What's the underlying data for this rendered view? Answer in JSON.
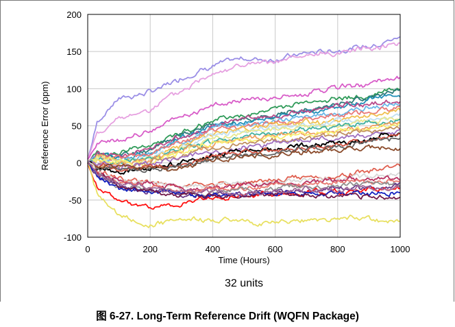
{
  "chart_data": {
    "type": "line",
    "xlabel": "Time (Hours)",
    "ylabel": "Reference Error (ppm)",
    "annotation": "32 units",
    "xlim": [
      0,
      1000
    ],
    "ylim": [
      -100,
      200
    ],
    "xticks": [
      0,
      200,
      400,
      600,
      800,
      1000
    ],
    "yticks": [
      -100,
      -50,
      0,
      50,
      100,
      150,
      200
    ],
    "grid": true,
    "x": [
      0,
      30,
      100,
      200,
      300,
      400,
      500,
      600,
      700,
      800,
      900,
      1000
    ],
    "series": [
      {
        "color": "#9a8ee6",
        "values": [
          5,
          55,
          88,
          95,
          115,
          132,
          140,
          140,
          148,
          152,
          158,
          170
        ]
      },
      {
        "color": "#e6a0e0",
        "values": [
          5,
          40,
          58,
          72,
          95,
          122,
          132,
          135,
          142,
          148,
          155,
          163
        ]
      },
      {
        "color": "#d85cc8",
        "values": [
          5,
          25,
          30,
          45,
          62,
          78,
          84,
          88,
          92,
          100,
          106,
          115
        ]
      },
      {
        "color": "#2e9a58",
        "values": [
          0,
          15,
          12,
          25,
          42,
          58,
          64,
          72,
          80,
          86,
          92,
          100
        ]
      },
      {
        "color": "#2e7a7a",
        "values": [
          0,
          12,
          8,
          18,
          38,
          52,
          58,
          64,
          72,
          80,
          88,
          95
        ]
      },
      {
        "color": "#1f8fb8",
        "values": [
          0,
          10,
          6,
          14,
          34,
          50,
          56,
          62,
          68,
          76,
          84,
          90
        ]
      },
      {
        "color": "#b84a8a",
        "values": [
          0,
          14,
          10,
          18,
          36,
          50,
          60,
          62,
          70,
          76,
          80,
          84
        ]
      },
      {
        "color": "#6ab8e8",
        "values": [
          0,
          8,
          4,
          10,
          30,
          46,
          52,
          56,
          62,
          68,
          74,
          80
        ]
      },
      {
        "color": "#e87878",
        "values": [
          0,
          10,
          8,
          12,
          28,
          44,
          50,
          54,
          60,
          64,
          70,
          74
        ]
      },
      {
        "color": "#f0c050",
        "values": [
          0,
          8,
          2,
          8,
          24,
          40,
          46,
          50,
          54,
          58,
          64,
          70
        ]
      },
      {
        "color": "#c0e0f0",
        "values": [
          0,
          6,
          0,
          6,
          22,
          36,
          44,
          48,
          52,
          56,
          60,
          64
        ]
      },
      {
        "color": "#e8e890",
        "values": [
          0,
          6,
          2,
          4,
          18,
          32,
          40,
          44,
          48,
          50,
          55,
          58
        ]
      },
      {
        "color": "#40b0a0",
        "values": [
          0,
          4,
          0,
          6,
          20,
          30,
          36,
          40,
          44,
          50,
          54,
          58
        ]
      },
      {
        "color": "#f0a060",
        "values": [
          0,
          4,
          -2,
          4,
          16,
          28,
          34,
          36,
          40,
          44,
          48,
          54
        ]
      },
      {
        "color": "#f8f070",
        "values": [
          0,
          2,
          0,
          2,
          14,
          26,
          30,
          34,
          38,
          42,
          46,
          50
        ]
      },
      {
        "color": "#c09060",
        "values": [
          0,
          0,
          -4,
          0,
          10,
          20,
          26,
          30,
          34,
          38,
          42,
          46
        ]
      },
      {
        "color": "#a070c0",
        "values": [
          0,
          -2,
          -6,
          -2,
          8,
          16,
          22,
          26,
          30,
          34,
          38,
          44
        ]
      },
      {
        "color": "#000000",
        "values": [
          0,
          -5,
          -12,
          -8,
          0,
          10,
          16,
          18,
          22,
          26,
          32,
          40
        ]
      },
      {
        "color": "#d05040",
        "values": [
          0,
          -2,
          -8,
          -6,
          -2,
          8,
          14,
          16,
          20,
          26,
          30,
          36
        ]
      },
      {
        "color": "#606060",
        "values": [
          0,
          -4,
          -10,
          -8,
          -4,
          6,
          10,
          14,
          18,
          22,
          28,
          34
        ]
      },
      {
        "color": "#8a4a2a",
        "values": [
          0,
          -2,
          -6,
          -8,
          -6,
          4,
          8,
          10,
          14,
          18,
          20,
          18
        ]
      },
      {
        "color": "#e06050",
        "values": [
          0,
          -10,
          -20,
          -25,
          -30,
          -30,
          -25,
          -22,
          -20,
          -18,
          -12,
          -5
        ]
      },
      {
        "color": "#d8d8d8",
        "values": [
          0,
          -12,
          -22,
          -28,
          -34,
          -30,
          -28,
          -26,
          -24,
          -22,
          -18,
          -15
        ]
      },
      {
        "color": "#b83060",
        "values": [
          0,
          -14,
          -25,
          -30,
          -36,
          -34,
          -30,
          -28,
          -26,
          -24,
          -22,
          -20
        ]
      },
      {
        "color": "#e87870",
        "values": [
          0,
          -15,
          -28,
          -32,
          -38,
          -36,
          -33,
          -30,
          -28,
          -26,
          -25,
          -25
        ]
      },
      {
        "color": "#909090",
        "values": [
          0,
          -16,
          -30,
          -35,
          -40,
          -40,
          -36,
          -34,
          -32,
          -30,
          -28,
          -28
        ]
      },
      {
        "color": "#6a3a8a",
        "values": [
          0,
          -18,
          -32,
          -38,
          -42,
          -42,
          -40,
          -38,
          -38,
          -36,
          -34,
          -30
        ]
      },
      {
        "color": "#ff1010",
        "values": [
          0,
          -30,
          -50,
          -60,
          -55,
          -48,
          -44,
          -42,
          -40,
          -38,
          -36,
          -32
        ]
      },
      {
        "color": "#e8e060",
        "values": [
          0,
          -40,
          -70,
          -85,
          -78,
          -76,
          -78,
          -80,
          -78,
          -74,
          -76,
          -78
        ]
      },
      {
        "color": "#1020c0",
        "values": [
          0,
          -18,
          -35,
          -40,
          -44,
          -44,
          -42,
          -40,
          -40,
          -40,
          -42,
          -40
        ]
      },
      {
        "color": "#701848",
        "values": [
          0,
          -18,
          -32,
          -38,
          -42,
          -44,
          -44,
          -42,
          -42,
          -44,
          -46,
          -48
        ]
      },
      {
        "color": "#a06898",
        "values": [
          0,
          -16,
          -28,
          -32,
          -36,
          -38,
          -40,
          -38,
          -36,
          -36,
          -34,
          -34
        ]
      }
    ]
  },
  "caption": {
    "prefix": "图",
    "text": "6-27. Long-Term Reference Drift (WQFN Package)"
  }
}
